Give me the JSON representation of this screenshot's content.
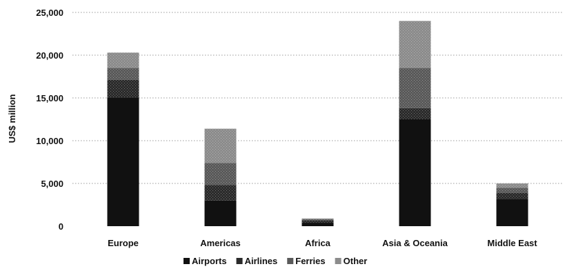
{
  "chart_data": {
    "type": "bar",
    "stacked": true,
    "ylabel": "US$ million",
    "ylim": [
      0,
      25000
    ],
    "yticks": [
      "0",
      "5,000",
      "10,000",
      "15,000",
      "20,000",
      "25,000"
    ],
    "categories": [
      "Europe",
      "Americas",
      "Africa",
      "Asia & Oceania",
      "Middle East"
    ],
    "series": [
      {
        "name": "Airports",
        "values": [
          15000,
          3000,
          400,
          12500,
          3200
        ],
        "color": "#111111"
      },
      {
        "name": "Airlines",
        "values": [
          2100,
          1800,
          300,
          1300,
          700
        ],
        "color": "#2b2b2b"
      },
      {
        "name": "Ferries",
        "values": [
          1400,
          2600,
          100,
          4700,
          600
        ],
        "color": "#5a5a5a"
      },
      {
        "name": "Other",
        "values": [
          1800,
          4000,
          100,
          5500,
          500
        ],
        "color": "#8c8c8c"
      }
    ],
    "grid": true,
    "legend_position": "bottom"
  }
}
